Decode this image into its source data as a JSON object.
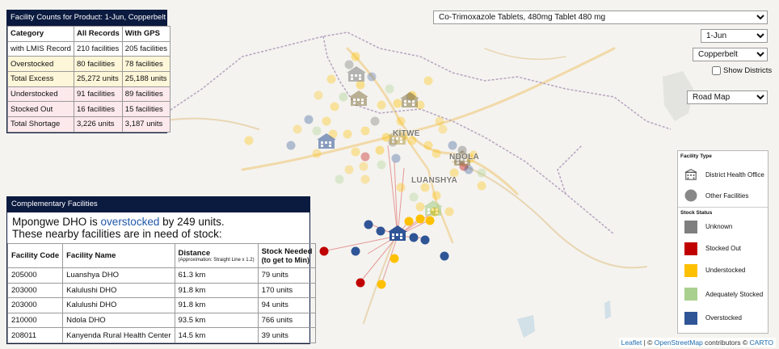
{
  "map": {
    "cities": [
      "KITWE",
      "NDOLA",
      "LUANSHYA"
    ]
  },
  "counts_panel": {
    "title": "Facility Counts for Product: 1-Jun, Copperbelt",
    "headers": [
      "Category",
      "All Records",
      "With GPS"
    ],
    "rows": [
      {
        "category": "with LMIS Record",
        "all": "210 facilities",
        "gps": "205 facilities",
        "tone": "ok"
      },
      {
        "category": "Overstocked",
        "all": "80 facilities",
        "gps": "78 facilities",
        "tone": "over"
      },
      {
        "category": "Total Excess",
        "all": "25,272 units",
        "gps": "25,188 units",
        "tone": "over"
      },
      {
        "category": "Understocked",
        "all": "91 facilities",
        "gps": "89 facilities",
        "tone": "under"
      },
      {
        "category": "Stocked Out",
        "all": "16 facilities",
        "gps": "15 facilities",
        "tone": "under"
      },
      {
        "category": "Total Shortage",
        "all": "3,226 units",
        "gps": "3,187 units",
        "tone": "under"
      }
    ]
  },
  "complementary": {
    "title": "Complementary Facilities",
    "message_pre": "Mpongwe DHO is ",
    "message_link": "overstocked",
    "message_post": " by 249 units.",
    "message_line2": "These nearby facilities are in need of stock:",
    "headers": {
      "code": "Facility Code",
      "name": "Facility Name",
      "distance": "Distance",
      "distance_note": "(Approximation: Straight Line x 1.2)",
      "needed": "Stock Needed",
      "needed_note": "(to get to Min)"
    },
    "rows": [
      {
        "code": "205000",
        "name": "Luanshya DHO",
        "distance": "61.3 km",
        "needed": "79 units"
      },
      {
        "code": "203000",
        "name": "Kalulushi DHO",
        "distance": "91.8 km",
        "needed": "170 units"
      },
      {
        "code": "203000",
        "name": "Kalulushi DHO",
        "distance": "91.8 km",
        "needed": "94 units"
      },
      {
        "code": "210000",
        "name": "Ndola DHO",
        "distance": "93.5 km",
        "needed": "766 units"
      },
      {
        "code": "208011",
        "name": "Kanyenda Rural Health Center",
        "distance": "14.5 km",
        "needed": "39 units"
      }
    ]
  },
  "controls": {
    "product": "Co-Trimoxazole Tablets, 480mg Tablet 480 mg",
    "period": "1-Jun",
    "province": "Copperbelt",
    "show_districts_label": "Show Districts",
    "show_districts_checked": false,
    "basemap": "Road Map"
  },
  "legend": {
    "facility_type_title": "Facility Type",
    "facility_types": [
      {
        "label": "District Health Office",
        "icon": "building-icon"
      },
      {
        "label": "Other Facilities",
        "icon": "circle-icon"
      }
    ],
    "stock_status_title": "Stock Status",
    "statuses": [
      {
        "label": "Unknown",
        "color": "#7f7f7f"
      },
      {
        "label": "Stocked Out",
        "color": "#c00000"
      },
      {
        "label": "Understocked",
        "color": "#ffc000"
      },
      {
        "label": "Adequately Stocked",
        "color": "#a9d08e"
      },
      {
        "label": "Overstocked",
        "color": "#2f5597"
      }
    ]
  },
  "attribution": {
    "leaflet": "Leaflet",
    "sep": " | © ",
    "osm": "OpenStreetMap",
    "contrib": " contributors © ",
    "carto": "CARTO"
  }
}
